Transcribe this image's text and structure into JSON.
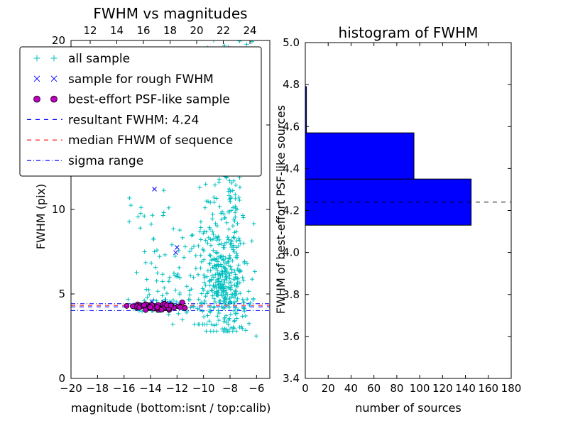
{
  "figure": {
    "background": "#ffffff"
  },
  "left_plot": {
    "title": "FWHM vs magnitudes",
    "xlabel": "magnitude (bottom:isnt / top:calib)",
    "ylabel": "FWHM (pix)"
  },
  "right_plot": {
    "title": "histogram of FWHM",
    "xlabel": "number of sources",
    "ylabel": "FWHM of best-effort PSF-like sources"
  },
  "legend": {
    "entries": [
      {
        "label": "all sample",
        "type": "markers",
        "marker": "plus",
        "color": "#00bfbf"
      },
      {
        "label": "sample for rough FWHM",
        "type": "markers",
        "marker": "cross",
        "color": "#0000ff"
      },
      {
        "label": "best-effort PSF-like sample",
        "type": "markers",
        "marker": "circle",
        "color": "#bf00bf"
      },
      {
        "label": "resultant FWHM: 4.24",
        "type": "line",
        "dash": "dashed",
        "color": "#0000ff"
      },
      {
        "label": "median FHWM of sequence",
        "type": "line",
        "dash": "dashed",
        "color": "#ff0000"
      },
      {
        "label": "sigma range",
        "type": "line",
        "dash": "dashdot",
        "color": "#0000ff"
      }
    ]
  },
  "chart_data": [
    {
      "type": "scatter",
      "title": "FWHM vs magnitudes",
      "xlabel": "magnitude (bottom:isnt / top:calib)",
      "ylabel": "FWHM (pix)",
      "xlim": [
        -20,
        -5
      ],
      "ylim": [
        0,
        20
      ],
      "xticks": [
        -20,
        -18,
        -16,
        -14,
        -12,
        -10,
        -8,
        -6
      ],
      "yticks": [
        0,
        5,
        10,
        15,
        20
      ],
      "top_xlim": [
        10.56,
        25.49
      ],
      "top_xticks": [
        12,
        14,
        16,
        18,
        20,
        22,
        24
      ],
      "seed": 7,
      "series": [
        {
          "name": "all sample",
          "marker": "plus",
          "color": "#00bfbf",
          "clusters": [
            {
              "n": 330,
              "cx": -8.4,
              "cy": 6.0,
              "sx": 0.75,
              "sy": 1.9,
              "xmin": -10.2,
              "xmax": -5.9,
              "ymin": 2.8,
              "ymax": 20
            },
            {
              "n": 150,
              "cx": -8.2,
              "cy": 13.5,
              "sx": 0.85,
              "sy": 3.2,
              "xmin": -10.2,
              "xmax": -6.2,
              "ymin": 8,
              "ymax": 20
            },
            {
              "n": 65,
              "cx": -10.8,
              "cy": 6.5,
              "sx": 1.1,
              "sy": 2.2,
              "xmin": -13,
              "xmax": -9,
              "ymin": 3.2,
              "ymax": 13
            },
            {
              "n": 45,
              "cx": -13.4,
              "cy": 5.4,
              "sx": 0.9,
              "sy": 1.0,
              "xmin": -15.5,
              "xmax": -11.8,
              "ymin": 4.0,
              "ymax": 8.5
            },
            {
              "n": 20,
              "cx": -14.2,
              "cy": 10.2,
              "sx": 0.7,
              "sy": 1.2,
              "xmin": -15.6,
              "xmax": -13.0,
              "ymin": 7.5,
              "ymax": 12.5
            },
            {
              "n": 30,
              "cx": -12.5,
              "cy": 4.4,
              "sx": 1.8,
              "sy": 0.3,
              "xmin": -16.2,
              "xmax": -9.5,
              "ymin": 3.7,
              "ymax": 5.2
            },
            {
              "n": 18,
              "cx": -6.9,
              "cy": 4.2,
              "sx": 0.7,
              "sy": 1.1,
              "xmin": -8,
              "xmax": -5.8,
              "ymin": 2.5,
              "ymax": 6.5
            },
            {
              "n": 14,
              "cx": -8.2,
              "cy": 19.4,
              "sx": 1.1,
              "sy": 0.5,
              "xmin": -9.8,
              "xmax": -6.3,
              "ymin": 18.3,
              "ymax": 20
            }
          ]
        },
        {
          "name": "sample for rough FWHM",
          "marker": "cross",
          "color": "#0000ff",
          "points": [
            [
              -13.7,
              11.2
            ],
            [
              -12.0,
              7.75
            ],
            [
              -12.1,
              7.45
            ],
            [
              -13.9,
              4.55
            ],
            [
              -14.6,
              4.4
            ],
            [
              -12.6,
              4.45
            ],
            [
              -11.9,
              4.3
            ],
            [
              -15.1,
              4.35
            ],
            [
              -13.0,
              4.5
            ]
          ]
        },
        {
          "name": "best-effort PSF-like sample",
          "marker": "circle",
          "color": "#bf00bf",
          "edge": "#000000",
          "clusters": [
            {
              "n": 60,
              "cx": -13.5,
              "cy": 4.25,
              "sx": 1.05,
              "sy": 0.09,
              "xmin": -15.8,
              "xmax": -11.4,
              "ymin": 4.05,
              "ymax": 4.5
            }
          ]
        }
      ],
      "hlines": [
        {
          "name": "resultant FWHM",
          "y": 4.24,
          "color": "#0000ff",
          "dash": "dashed"
        },
        {
          "name": "median FHWM of sequence",
          "y": 4.32,
          "color": "#ff0000",
          "dash": "dashed"
        },
        {
          "name": "sigma range upper",
          "y": 4.42,
          "color": "#0000ff",
          "dash": "dashdot"
        },
        {
          "name": "sigma range lower",
          "y": 4.02,
          "color": "#0000ff",
          "dash": "dashdot"
        }
      ],
      "resultant_fwhm": 4.24
    },
    {
      "type": "bar",
      "orientation": "horizontal",
      "title": "histogram of FWHM",
      "xlabel": "number of sources",
      "ylabel": "FWHM of best-effort PSF-like sources",
      "xlim": [
        0,
        180
      ],
      "ylim": [
        3.4,
        5.0
      ],
      "xticks": [
        0,
        20,
        40,
        60,
        80,
        100,
        120,
        140,
        160,
        180
      ],
      "yticks": [
        3.4,
        3.6,
        3.8,
        4.0,
        4.2,
        4.4,
        4.6,
        4.8,
        5.0
      ],
      "bar_color": "#0000ff",
      "bins": [
        {
          "from": 4.13,
          "to": 4.35,
          "count": 145
        },
        {
          "from": 4.35,
          "to": 4.57,
          "count": 95
        },
        {
          "from": 4.57,
          "to": 4.79,
          "count": 1
        }
      ],
      "marker_line": {
        "y": 4.24,
        "color": "#000000",
        "dash": "dashed"
      }
    }
  ]
}
